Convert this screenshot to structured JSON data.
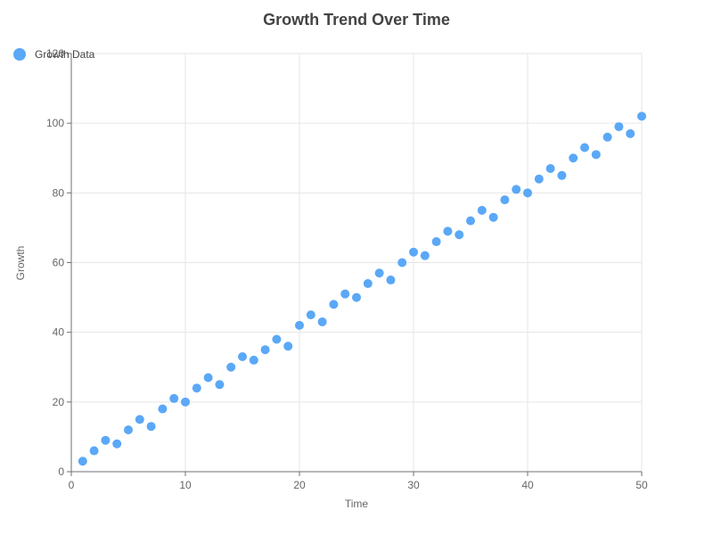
{
  "chart_data": {
    "type": "scatter",
    "title": "Growth Trend Over Time",
    "xlabel": "Time",
    "ylabel": "Growth",
    "xlim": [
      0,
      50
    ],
    "ylim": [
      0,
      120
    ],
    "x_ticks": [
      0,
      10,
      20,
      30,
      40,
      50
    ],
    "y_ticks": [
      0,
      20,
      40,
      60,
      80,
      100,
      120
    ],
    "grid": true,
    "legend_position": "top-left",
    "series": [
      {
        "name": "Growth Data",
        "color": "#5aa8f7",
        "points": [
          [
            1,
            3
          ],
          [
            2,
            6
          ],
          [
            3,
            9
          ],
          [
            4,
            8
          ],
          [
            5,
            12
          ],
          [
            6,
            15
          ],
          [
            7,
            13
          ],
          [
            8,
            18
          ],
          [
            9,
            21
          ],
          [
            10,
            20
          ],
          [
            11,
            24
          ],
          [
            12,
            27
          ],
          [
            13,
            25
          ],
          [
            14,
            30
          ],
          [
            15,
            33
          ],
          [
            16,
            32
          ],
          [
            17,
            35
          ],
          [
            18,
            38
          ],
          [
            19,
            36
          ],
          [
            20,
            42
          ],
          [
            21,
            45
          ],
          [
            22,
            43
          ],
          [
            23,
            48
          ],
          [
            24,
            51
          ],
          [
            25,
            50
          ],
          [
            26,
            54
          ],
          [
            27,
            57
          ],
          [
            28,
            55
          ],
          [
            29,
            60
          ],
          [
            30,
            63
          ],
          [
            31,
            62
          ],
          [
            32,
            66
          ],
          [
            33,
            69
          ],
          [
            34,
            68
          ],
          [
            35,
            72
          ],
          [
            36,
            75
          ],
          [
            37,
            73
          ],
          [
            38,
            78
          ],
          [
            39,
            81
          ],
          [
            40,
            80
          ],
          [
            41,
            84
          ],
          [
            42,
            87
          ],
          [
            43,
            85
          ],
          [
            44,
            90
          ],
          [
            45,
            93
          ],
          [
            46,
            91
          ],
          [
            47,
            96
          ],
          [
            48,
            99
          ],
          [
            49,
            97
          ],
          [
            50,
            102
          ]
        ]
      }
    ]
  }
}
